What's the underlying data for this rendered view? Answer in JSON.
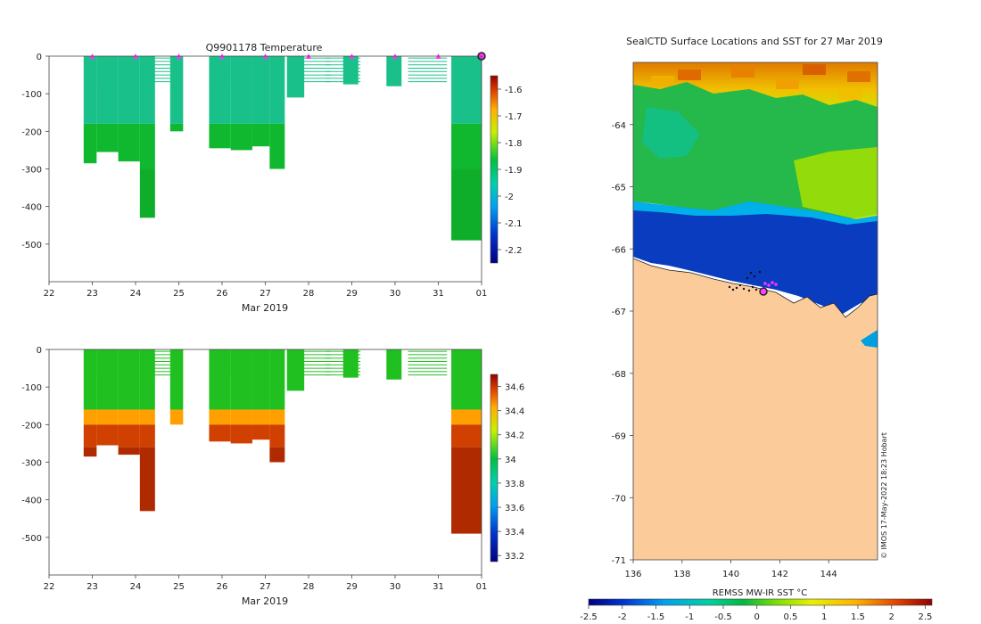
{
  "chart_data": [
    {
      "type": "heatmap",
      "title": "Q9901178  Temperature",
      "xlabel": "Mar 2019",
      "ylabel": "",
      "x_ticks": [
        "22",
        "23",
        "24",
        "25",
        "26",
        "27",
        "28",
        "29",
        "30",
        "31",
        "01"
      ],
      "y_ticks": [
        "0",
        "-100",
        "-200",
        "-300",
        "-400",
        "-500"
      ],
      "xlim": [
        22,
        32
      ],
      "ylim": [
        -600,
        0
      ],
      "colorbar": {
        "ticks": [
          "-1.6",
          "-1.7",
          "-1.8",
          "-1.9",
          "-2",
          "-2.1",
          "-2.2"
        ],
        "range": [
          -2.25,
          -1.55
        ]
      },
      "profiles": [
        {
          "t": 22.8,
          "w": 0.3,
          "depth": 285
        },
        {
          "t": 23.1,
          "w": 0.5,
          "depth": 255
        },
        {
          "t": 23.6,
          "w": 0.5,
          "depth": 280
        },
        {
          "t": 24.1,
          "w": 0.35,
          "depth": 430
        },
        {
          "t": 24.8,
          "w": 0.3,
          "depth": 200
        },
        {
          "t": 25.7,
          "w": 0.5,
          "depth": 245
        },
        {
          "t": 26.2,
          "w": 0.5,
          "depth": 250
        },
        {
          "t": 26.7,
          "w": 0.4,
          "depth": 240
        },
        {
          "t": 27.1,
          "w": 0.35,
          "depth": 300
        },
        {
          "t": 27.5,
          "w": 0.4,
          "depth": 110
        },
        {
          "t": 28.8,
          "w": 0.35,
          "depth": 75
        },
        {
          "t": 29.8,
          "w": 0.35,
          "depth": 80
        },
        {
          "t": 31.3,
          "w": 0.7,
          "depth": 490
        }
      ],
      "surface_markers": [
        "23",
        "24",
        "25",
        "26",
        "27",
        "28",
        "29",
        "30",
        "31",
        "01"
      ]
    },
    {
      "type": "heatmap",
      "title": "",
      "xlabel": "Mar 2019",
      "ylabel": "",
      "x_ticks": [
        "22",
        "23",
        "24",
        "25",
        "26",
        "27",
        "28",
        "29",
        "30",
        "31",
        "01"
      ],
      "y_ticks": [
        "0",
        "-100",
        "-200",
        "-300",
        "-400",
        "-500"
      ],
      "xlim": [
        22,
        32
      ],
      "ylim": [
        -600,
        0
      ],
      "colorbar": {
        "ticks": [
          "34.6",
          "34.4",
          "34.2",
          "34",
          "33.8",
          "33.6",
          "33.4",
          "33.2"
        ],
        "range": [
          33.15,
          34.7
        ]
      }
    },
    {
      "type": "heatmap",
      "title": "SealCTD Surface Locations and SST for 27 Mar 2019",
      "xlabel": "",
      "x_ticks": [
        "136",
        "138",
        "140",
        "142",
        "144"
      ],
      "y_ticks": [
        "-64",
        "-65",
        "-66",
        "-67",
        "-68",
        "-69",
        "-70",
        "-71"
      ],
      "xlim": [
        136,
        146
      ],
      "ylim": [
        -71,
        -63
      ],
      "colorbar": {
        "label": "REMSS MW-IR SST °C",
        "ticks": [
          "-2.5",
          "-2",
          "-1.5",
          "-1",
          "-0.5",
          "0",
          "0.5",
          "1",
          "1.5",
          "2",
          "2.5"
        ],
        "range": [
          -2.5,
          2.6
        ]
      },
      "credit": "© IMOS 17-May-2022 18:23 Hobart"
    }
  ]
}
